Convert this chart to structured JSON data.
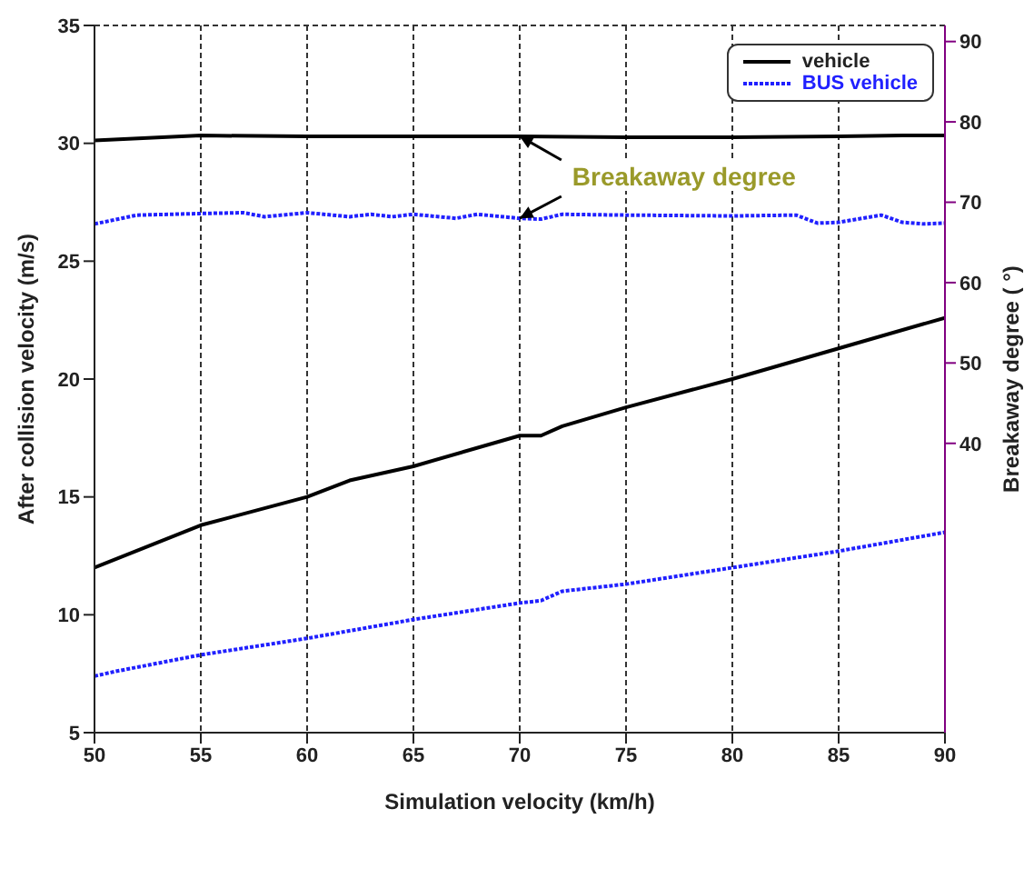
{
  "chart_data": {
    "type": "line",
    "xlabel": "Simulation velocity (km/h)",
    "ylabel": "After collision velocity (m/s)",
    "y2label": "Breakaway degree ( °)",
    "xlim": [
      50,
      90
    ],
    "xticks": [
      50,
      55,
      60,
      65,
      70,
      75,
      80,
      85,
      90
    ],
    "ylim": [
      5,
      35
    ],
    "yticks": [
      5,
      10,
      15,
      20,
      25,
      30,
      35
    ],
    "y2lim": [
      4,
      92
    ],
    "y2ticks": [
      40,
      50,
      60,
      70,
      80,
      90
    ],
    "grid": true,
    "legend": "top right",
    "marker": "none",
    "annotations": [
      {
        "text": "Breakaway degree",
        "x": 70,
        "y": 30.3
      }
    ],
    "series": [
      {
        "name": "vehicle",
        "color": "#000000",
        "line_style": "solid",
        "x": [
          50,
          55,
          60,
          62,
          65,
          70,
          71,
          72,
          75,
          80,
          85,
          90
        ],
        "values": [
          12,
          13.8,
          15,
          15.7,
          16.3,
          17.6,
          17.6,
          18,
          18.8,
          20,
          21.3,
          22.6
        ]
      },
      {
        "name": "BUS vehicle",
        "color": "#2020ff",
        "line_style": "dotted",
        "x": [
          50,
          51,
          55,
          60,
          65,
          70,
          71,
          72,
          73,
          75,
          80,
          85,
          90
        ],
        "values": [
          7.4,
          7.6,
          8.3,
          9,
          9.8,
          10.5,
          10.6,
          11,
          11.1,
          11.3,
          12,
          12.7,
          13.5
        ]
      },
      {
        "color": "#000000",
        "axis": "y2",
        "line_style": "solid",
        "x": [
          50,
          55,
          60,
          70,
          75,
          80,
          85,
          88,
          90
        ],
        "values": [
          77.7,
          78.3,
          78.2,
          78.2,
          78.1,
          78.1,
          78.2,
          78.3,
          78.3
        ]
      },
      {
        "color": "#2020ff",
        "axis": "y2",
        "line_style": "dotted",
        "x": [
          50,
          52,
          55,
          57,
          58,
          60,
          62,
          63,
          64,
          65,
          67,
          68,
          70,
          71,
          72,
          75,
          80,
          83,
          84,
          85,
          87,
          88,
          89,
          90
        ],
        "values": [
          67.3,
          68.4,
          68.6,
          68.7,
          68.2,
          68.7,
          68.2,
          68.5,
          68.2,
          68.5,
          68,
          68.5,
          68,
          67.9,
          68.5,
          68.4,
          68.3,
          68.4,
          67.4,
          67.5,
          68.4,
          67.5,
          67.3,
          67.4
        ]
      }
    ]
  }
}
